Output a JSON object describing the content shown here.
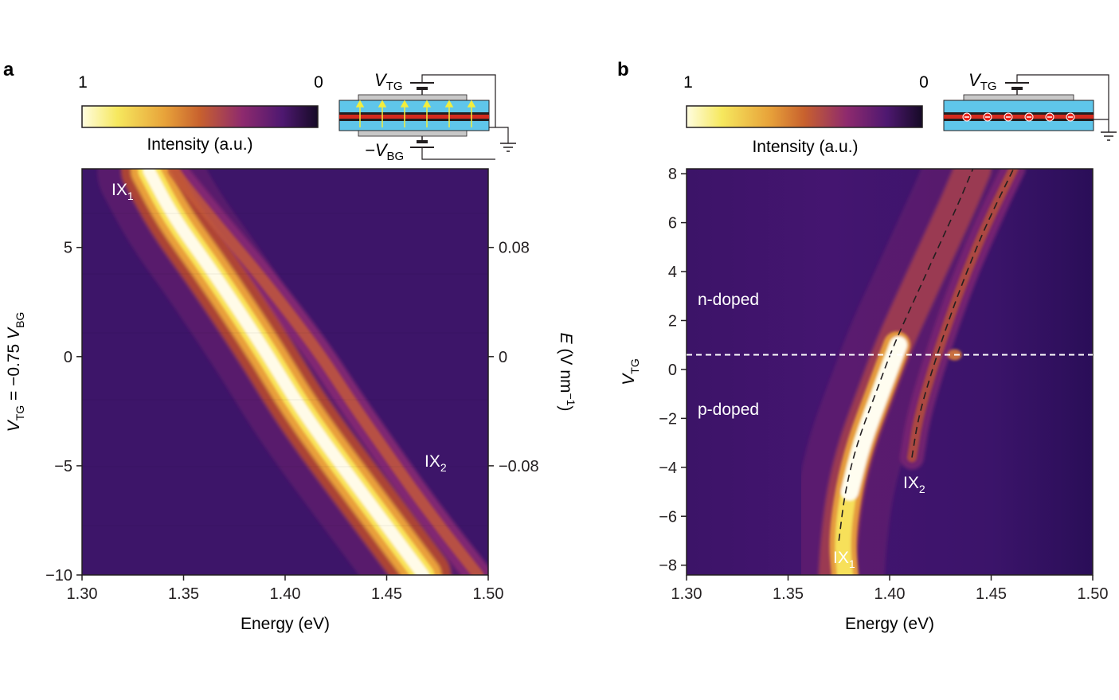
{
  "chart_data": [
    {
      "panel": "a",
      "type": "heatmap",
      "xlabel": "Energy (eV)",
      "ylabel_parts": [
        "V",
        "TG",
        " = −0.75 ",
        "V",
        "BG"
      ],
      "xlim": [
        1.3,
        1.5
      ],
      "ylim": [
        -10,
        8.6
      ],
      "xticks": [
        1.3,
        1.35,
        1.4,
        1.45,
        1.5
      ],
      "xtick_labels": [
        "1.30",
        "1.35",
        "1.40",
        "1.45",
        "1.50"
      ],
      "yticks": [
        -10,
        -5,
        0,
        5
      ],
      "ytick_labels": [
        "−10",
        "−5",
        "0",
        "5"
      ],
      "right_axis": {
        "label_parts": [
          "E",
          " (V nm",
          "−1",
          ")"
        ],
        "ticks_at_left_values": [
          5,
          0,
          -5
        ],
        "tick_labels": [
          "0.08",
          "0",
          "−0.08"
        ]
      },
      "colorbar": {
        "label": "Intensity (a.u.)",
        "min_label": "1",
        "max_label": "0",
        "colors": [
          "#fffde0",
          "#f6e85e",
          "#e8a33a",
          "#c8612e",
          "#8e2a6e",
          "#4e1870",
          "#160a26"
        ]
      },
      "series": [
        {
          "name": "IX1",
          "label_main": "IX",
          "label_sub": "1",
          "points": [
            [
              1.333,
              8.5
            ],
            [
              1.345,
              6.4
            ],
            [
              1.362,
              4.2
            ],
            [
              1.378,
              2.0
            ],
            [
              1.392,
              0.0
            ],
            [
              1.405,
              -2.0
            ],
            [
              1.42,
              -4.0
            ],
            [
              1.436,
              -6.0
            ],
            [
              1.452,
              -8.0
            ],
            [
              1.468,
              -10.0
            ]
          ]
        },
        {
          "name": "IX2",
          "label_main": "IX",
          "label_sub": "2",
          "points": [
            [
              1.345,
              8.5
            ],
            [
              1.365,
              6.2
            ],
            [
              1.385,
              4.0
            ],
            [
              1.402,
              2.0
            ],
            [
              1.418,
              0.0
            ],
            [
              1.432,
              -2.0
            ],
            [
              1.447,
              -4.0
            ],
            [
              1.462,
              -6.0
            ],
            [
              1.478,
              -8.0
            ],
            [
              1.495,
              -10.0
            ]
          ]
        }
      ]
    },
    {
      "panel": "b",
      "type": "heatmap",
      "xlabel": "Energy (eV)",
      "ylabel_parts": [
        "V",
        "TG"
      ],
      "xlim": [
        1.3,
        1.5
      ],
      "ylim": [
        -8.4,
        8.2
      ],
      "xticks": [
        1.3,
        1.35,
        1.4,
        1.45,
        1.5
      ],
      "xtick_labels": [
        "1.30",
        "1.35",
        "1.40",
        "1.45",
        "1.50"
      ],
      "yticks": [
        8,
        6,
        4,
        2,
        0,
        -2,
        -4,
        -6,
        -8
      ],
      "ytick_labels": [
        "8",
        "6",
        "4",
        "2",
        "0",
        "−2",
        "−4",
        "−6",
        "−8"
      ],
      "colorbar": {
        "label": "Intensity (a.u.)",
        "min_label": "1",
        "max_label": "0",
        "colors": [
          "#fffde0",
          "#f6e85e",
          "#e8a33a",
          "#c8612e",
          "#8e2a6e",
          "#4e1870",
          "#160a26"
        ]
      },
      "threshold_line": {
        "y": 0.6
      },
      "region_labels": [
        "n-doped",
        "p-doped"
      ],
      "series": [
        {
          "name": "IX1",
          "label_main": "IX",
          "label_sub": "1",
          "dashed_fit": [
            [
              1.375,
              -7.0
            ],
            [
              1.378,
              -5.0
            ],
            [
              1.384,
              -3.0
            ],
            [
              1.393,
              -1.0
            ],
            [
              1.402,
              1.0
            ],
            [
              1.413,
              3.0
            ],
            [
              1.424,
              5.0
            ],
            [
              1.434,
              6.8
            ],
            [
              1.441,
              8.2
            ]
          ]
        },
        {
          "name": "IX2",
          "label_main": "IX",
          "label_sub": "2",
          "dashed_fit": [
            [
              1.411,
              -3.6
            ],
            [
              1.414,
              -2.0
            ],
            [
              1.421,
              0.0
            ],
            [
              1.429,
              2.0
            ],
            [
              1.438,
              4.0
            ],
            [
              1.448,
              6.0
            ],
            [
              1.461,
              8.2
            ]
          ]
        }
      ]
    }
  ],
  "panels": {
    "a": "a",
    "b": "b"
  },
  "schematics": {
    "a_top_label": [
      "V",
      "TG"
    ],
    "a_bottom_label": [
      "−V",
      "BG"
    ],
    "b_top_label": [
      "V",
      "TG"
    ]
  }
}
